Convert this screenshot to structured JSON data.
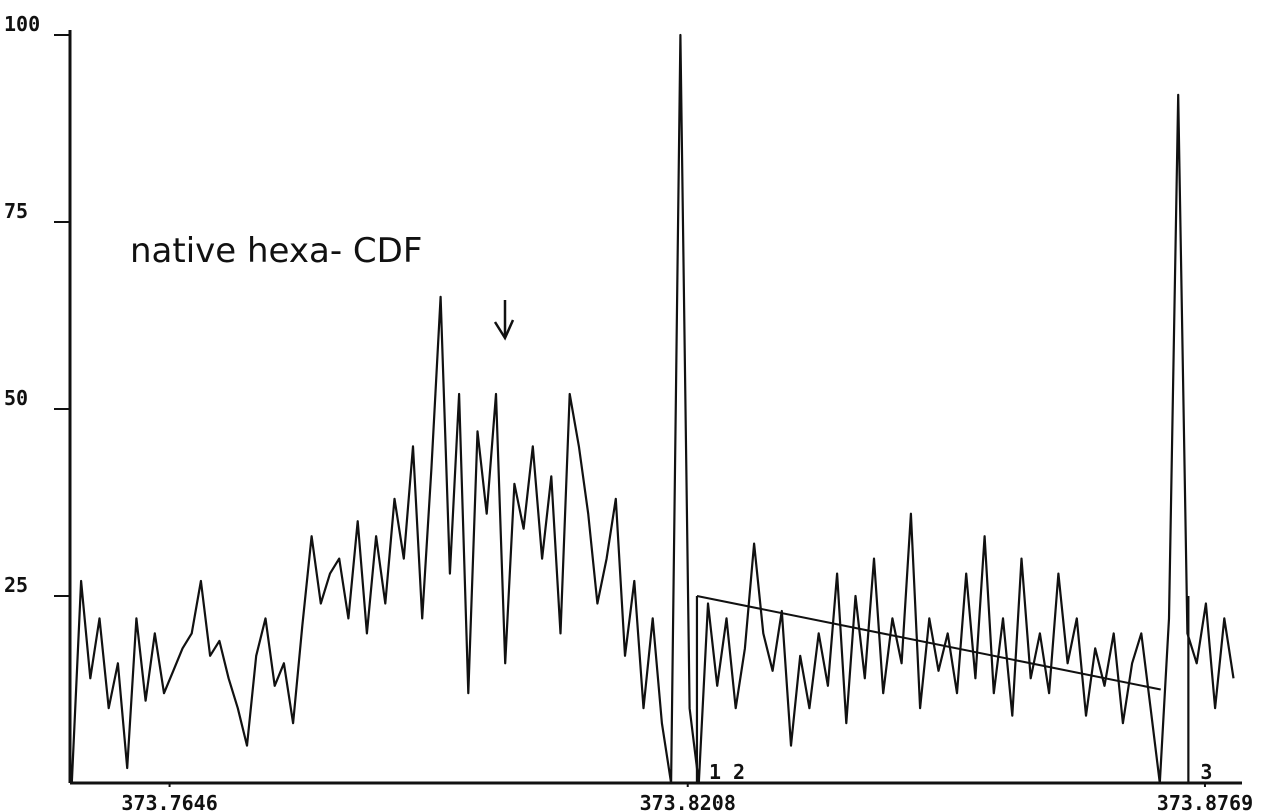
{
  "chart_data": {
    "type": "line",
    "annotation": "native hexa- CDF",
    "xlim": [
      373.7538,
      373.8807
    ],
    "xticks": [
      373.7646,
      373.8208,
      373.8769
    ],
    "ylim": [
      0,
      100
    ],
    "yticks": [
      25,
      50,
      75,
      100
    ],
    "color": "#111111",
    "x": [
      373.754,
      373.755,
      373.756,
      373.757,
      373.758,
      373.759,
      373.76,
      373.761,
      373.762,
      373.763,
      373.764,
      373.765,
      373.766,
      373.767,
      373.768,
      373.769,
      373.77,
      373.771,
      373.772,
      373.773,
      373.774,
      373.775,
      373.776,
      373.777,
      373.778,
      373.779,
      373.78,
      373.781,
      373.782,
      373.783,
      373.784,
      373.785,
      373.786,
      373.787,
      373.788,
      373.789,
      373.79,
      373.791,
      373.792,
      373.793,
      373.794,
      373.795,
      373.796,
      373.797,
      373.798,
      373.799,
      373.8,
      373.801,
      373.802,
      373.803,
      373.804,
      373.805,
      373.806,
      373.807,
      373.808,
      373.809,
      373.81,
      373.811,
      373.812,
      373.813,
      373.814,
      373.815,
      373.816,
      373.817,
      373.818,
      373.819,
      373.82,
      373.821,
      373.822,
      373.823,
      373.824,
      373.825,
      373.826,
      373.827,
      373.828,
      373.829,
      373.83,
      373.831,
      373.832,
      373.833,
      373.834,
      373.835,
      373.836,
      373.837,
      373.838,
      373.839,
      373.84,
      373.841,
      373.842,
      373.843,
      373.844,
      373.845,
      373.846,
      373.847,
      373.848,
      373.849,
      373.85,
      373.851,
      373.852,
      373.853,
      373.854,
      373.855,
      373.856,
      373.857,
      373.858,
      373.859,
      373.86,
      373.861,
      373.862,
      373.863,
      373.864,
      373.865,
      373.866,
      373.867,
      373.868,
      373.869,
      373.87,
      373.871,
      373.872,
      373.873,
      373.874,
      373.875,
      373.876,
      373.877,
      373.878,
      373.879,
      373.88
    ],
    "values": [
      0,
      27,
      14,
      22,
      10,
      16,
      2,
      22,
      11,
      20,
      12,
      15,
      18,
      20,
      27,
      17,
      19,
      14,
      10,
      5,
      17,
      22,
      13,
      16,
      8,
      21,
      33,
      24,
      28,
      30,
      22,
      35,
      20,
      33,
      24,
      38,
      30,
      45,
      22,
      42,
      65,
      28,
      52,
      12,
      47,
      36,
      52,
      16,
      40,
      34,
      45,
      30,
      41,
      20,
      52,
      45,
      36,
      24,
      30,
      38,
      17,
      27,
      10,
      22,
      8,
      0,
      100,
      10,
      0,
      24,
      13,
      22,
      10,
      18,
      32,
      20,
      15,
      23,
      5,
      17,
      10,
      20,
      13,
      28,
      8,
      25,
      14,
      30,
      12,
      22,
      16,
      36,
      10,
      22,
      15,
      20,
      12,
      28,
      14,
      33,
      12,
      22,
      9,
      30,
      14,
      20,
      12,
      28,
      16,
      22,
      9,
      18,
      13,
      20,
      8,
      16,
      20,
      10,
      0,
      22,
      92,
      20,
      16,
      24,
      10,
      22,
      14
    ],
    "markers": [
      {
        "label": "1 2",
        "x": 373.8218
      },
      {
        "label": "3",
        "x": 373.8751
      }
    ],
    "baseline": {
      "x": [
        373.8218,
        373.8721
      ],
      "y": [
        25,
        12.5
      ]
    }
  }
}
